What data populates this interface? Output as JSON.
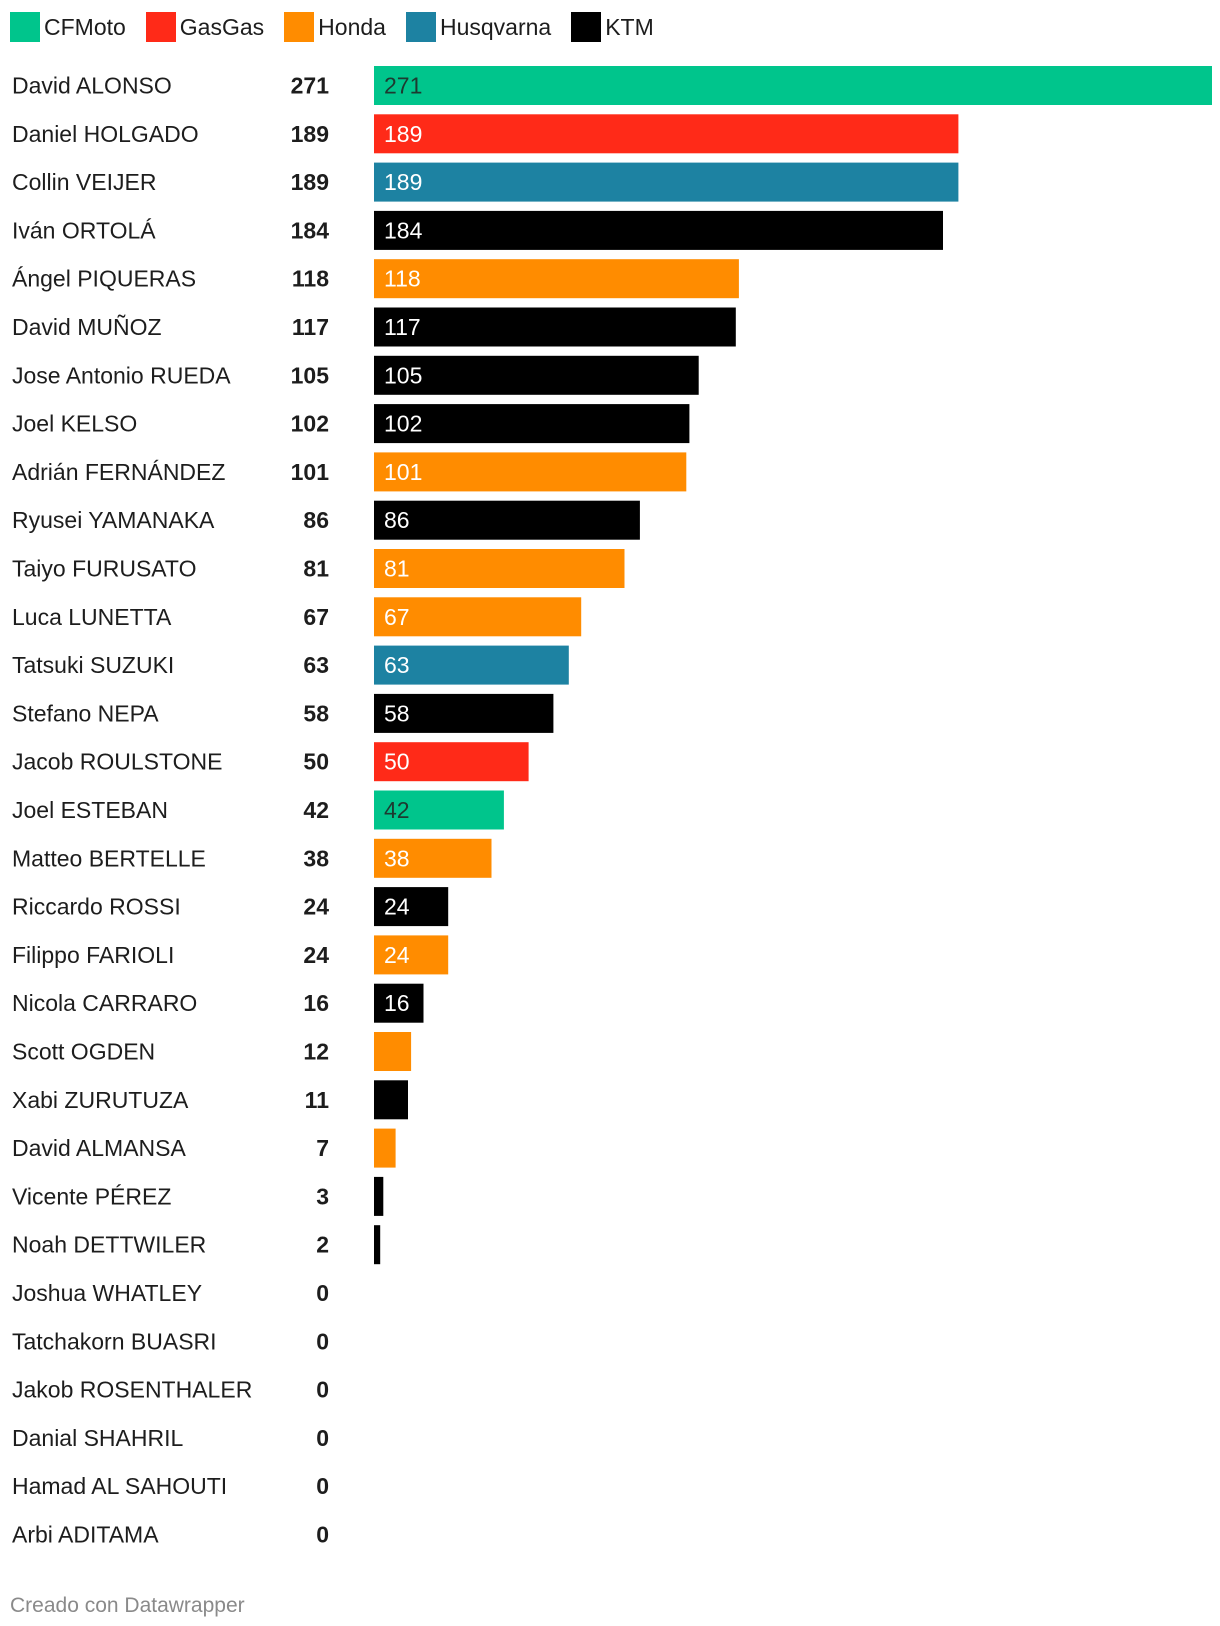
{
  "legend": [
    {
      "name": "CFMoto",
      "color": "#00c58c"
    },
    {
      "name": "GasGas",
      "color": "#ff2a18"
    },
    {
      "name": "Honda",
      "color": "#ff8c00"
    },
    {
      "name": "Husqvarna",
      "color": "#1d82a2"
    },
    {
      "name": "KTM",
      "color": "#000000"
    }
  ],
  "chart_data": {
    "type": "bar",
    "orientation": "horizontal",
    "xlim": [
      0,
      271
    ],
    "grid": false,
    "legend_position": "top-left",
    "rows": [
      {
        "rider": "David ALONSO",
        "value": 271,
        "brand": "CFMoto",
        "bar_label": "271"
      },
      {
        "rider": "Daniel HOLGADO",
        "value": 189,
        "brand": "GasGas",
        "bar_label": "189"
      },
      {
        "rider": "Collin VEIJER",
        "value": 189,
        "brand": "Husqvarna",
        "bar_label": "189"
      },
      {
        "rider": "Iván ORTOLÁ",
        "value": 184,
        "brand": "KTM",
        "bar_label": "184"
      },
      {
        "rider": "Ángel PIQUERAS",
        "value": 118,
        "brand": "Honda",
        "bar_label": "118"
      },
      {
        "rider": "David MUÑOZ",
        "value": 117,
        "brand": "KTM",
        "bar_label": "117"
      },
      {
        "rider": "Jose Antonio RUEDA",
        "value": 105,
        "brand": "KTM",
        "bar_label": "105"
      },
      {
        "rider": "Joel KELSO",
        "value": 102,
        "brand": "KTM",
        "bar_label": "102"
      },
      {
        "rider": "Adrián FERNÁNDEZ",
        "value": 101,
        "brand": "Honda",
        "bar_label": "101"
      },
      {
        "rider": "Ryusei YAMANAKA",
        "value": 86,
        "brand": "KTM",
        "bar_label": "86"
      },
      {
        "rider": "Taiyo FURUSATO",
        "value": 81,
        "brand": "Honda",
        "bar_label": "81"
      },
      {
        "rider": "Luca LUNETTA",
        "value": 67,
        "brand": "Honda",
        "bar_label": "67"
      },
      {
        "rider": "Tatsuki SUZUKI",
        "value": 63,
        "brand": "Husqvarna",
        "bar_label": "63"
      },
      {
        "rider": "Stefano NEPA",
        "value": 58,
        "brand": "KTM",
        "bar_label": "58"
      },
      {
        "rider": "Jacob ROULSTONE",
        "value": 50,
        "brand": "GasGas",
        "bar_label": "50"
      },
      {
        "rider": "Joel ESTEBAN",
        "value": 42,
        "brand": "CFMoto",
        "bar_label": "42"
      },
      {
        "rider": "Matteo BERTELLE",
        "value": 38,
        "brand": "Honda",
        "bar_label": "38"
      },
      {
        "rider": "Riccardo ROSSI",
        "value": 24,
        "brand": "KTM",
        "bar_label": "24"
      },
      {
        "rider": "Filippo FARIOLI",
        "value": 24,
        "brand": "Honda",
        "bar_label": "24"
      },
      {
        "rider": "Nicola CARRARO",
        "value": 16,
        "brand": "KTM",
        "bar_label": "16"
      },
      {
        "rider": "Scott OGDEN",
        "value": 12,
        "brand": "Honda",
        "bar_label": ""
      },
      {
        "rider": "Xabi ZURUTUZA",
        "value": 11,
        "brand": "KTM",
        "bar_label": ""
      },
      {
        "rider": "David ALMANSA",
        "value": 7,
        "brand": "Honda",
        "bar_label": ""
      },
      {
        "rider": "Vicente PÉREZ",
        "value": 3,
        "brand": "KTM",
        "bar_label": ""
      },
      {
        "rider": "Noah DETTWILER",
        "value": 2,
        "brand": "KTM",
        "bar_label": ""
      },
      {
        "rider": "Joshua WHATLEY",
        "value": 0,
        "brand": "",
        "bar_label": ""
      },
      {
        "rider": "Tatchakorn BUASRI",
        "value": 0,
        "brand": "",
        "bar_label": ""
      },
      {
        "rider": "Jakob ROSENTHALER",
        "value": 0,
        "brand": "",
        "bar_label": ""
      },
      {
        "rider": "Danial SHAHRIL",
        "value": 0,
        "brand": "",
        "bar_label": ""
      },
      {
        "rider": "Hamad AL SAHOUTI",
        "value": 0,
        "brand": "",
        "bar_label": ""
      },
      {
        "rider": "Arbi ADITAMA",
        "value": 0,
        "brand": "",
        "bar_label": ""
      }
    ]
  },
  "footer": {
    "credit": "Creado con Datawrapper"
  }
}
